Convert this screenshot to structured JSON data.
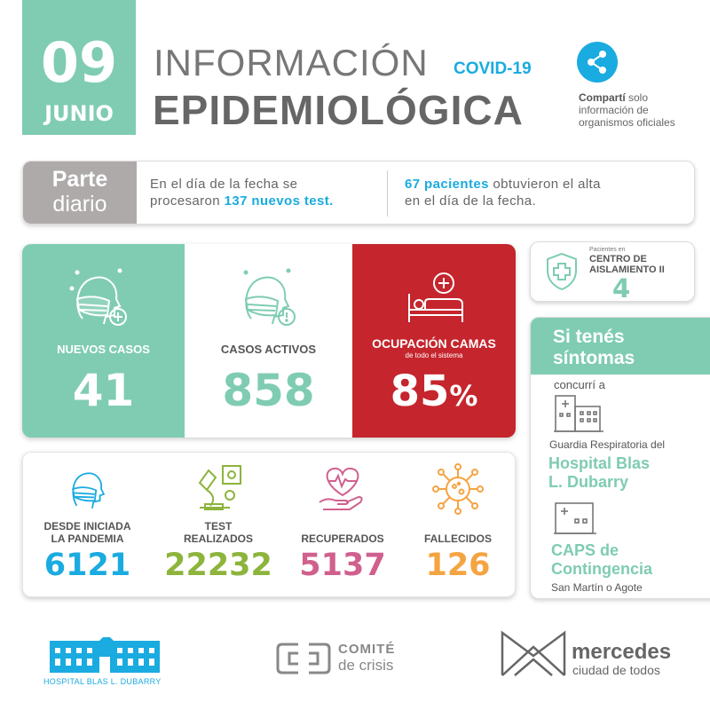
{
  "header": {
    "day": "09",
    "month": "JUNIO",
    "title_line1": "INFORMACIÓN",
    "title_tag": "COVID-19",
    "title_line2": "EPIDEMIOLÓGICA",
    "share_bold": "Compartí",
    "share_rest": " solo",
    "share_line2": "información de",
    "share_line3": "organismos oficiales",
    "share_icon": "share-icon"
  },
  "parte": {
    "label_1": "Parte",
    "label_2": "diario",
    "left_pre": "En el día de la fecha se",
    "left_mid": "procesaron ",
    "left_hl": "137 nuevos test.",
    "right_hl": "67 pacientes",
    "right_rest": " obtuvieron el alta",
    "right_line2": "en el día de la fecha."
  },
  "main": {
    "nuevos": {
      "label": "NUEVOS  CASOS",
      "value": "41",
      "icon": "masked-face-plus-icon"
    },
    "activos": {
      "label": "CASOS ACTIVOS",
      "value": "858",
      "icon": "masked-face-alert-icon"
    },
    "camas": {
      "label": "OCUPACIÓN CAMAS",
      "sub": "de todo el sistema",
      "value": "85",
      "unit": "%",
      "icon": "hospital-bed-icon"
    }
  },
  "totals": {
    "pandemia": {
      "label_1": "DESDE INICIADA",
      "label_2": "LA PANDEMIA",
      "value": "6121",
      "icon": "masked-face-icon"
    },
    "test": {
      "label_1": "TEST",
      "label_2": "REALIZADOS",
      "value": "22232",
      "icon": "microscope-icon"
    },
    "recuperados": {
      "label": "RECUPERADOS",
      "value": "5137",
      "icon": "heart-hand-icon"
    },
    "fallecidos": {
      "label": "FALLECIDOS",
      "value": "126",
      "icon": "virus-icon"
    }
  },
  "aislamiento": {
    "pre": "Pacientes en",
    "title_1": "CENTRO DE",
    "title_2": "AISLAMIENTO II",
    "value": "4",
    "icon": "shield-cross-icon"
  },
  "sintomas": {
    "title_1": "Si tenés",
    "title_2": "síntomas",
    "concurri": "concurrí a",
    "guardia": "Guardia Respiratoria del",
    "hospital_1": "Hospital Blas",
    "hospital_2": "L. Dubarry",
    "caps_1": "CAPS de",
    "caps_2": "Contingencia",
    "direccion": "San Martín o Agote"
  },
  "footer": {
    "hospital": "HOSPITAL BLAS L. DUBARRY",
    "comite_1": "COMITÉ",
    "comite_2": "de crisis",
    "merc_1": "mercedes",
    "merc_2": "ciudad de todos"
  },
  "colors": {
    "green": "#7fccb3",
    "red": "#c5252d",
    "blue": "#1aabe0",
    "olive": "#8db43c",
    "pink": "#d0608e",
    "orange": "#f5a442",
    "gray": "#aeaaaa"
  }
}
